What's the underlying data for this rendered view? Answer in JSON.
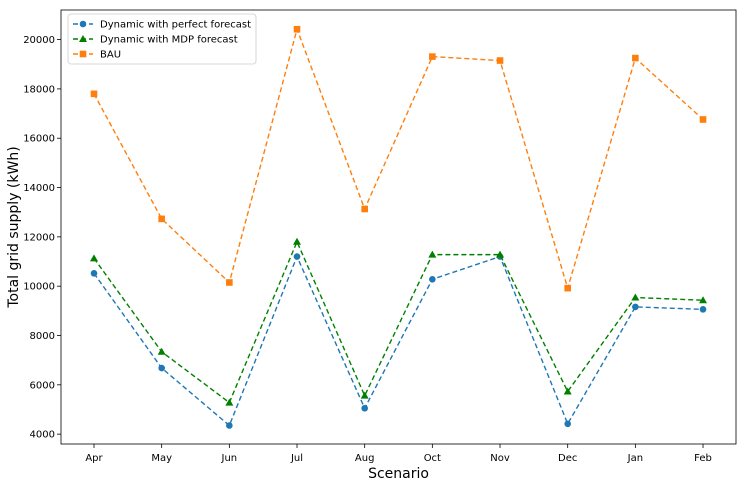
{
  "chart_data": {
    "type": "line",
    "title": "",
    "xlabel": "Scenario",
    "ylabel": "Total grid supply (kWh)",
    "categories": [
      "Apr",
      "May",
      "Jun",
      "Jul",
      "Aug",
      "Oct",
      "Nov",
      "Dec",
      "Jan",
      "Feb"
    ],
    "ylim": [
      3600,
      21200
    ],
    "yticks": [
      4000,
      6000,
      8000,
      10000,
      12000,
      14000,
      16000,
      18000,
      20000
    ],
    "grid": false,
    "legend_position": "top-left",
    "series": [
      {
        "name": "Dynamic with perfect forecast",
        "color": "#1f77b4",
        "marker": "circle",
        "linestyle": "dashed",
        "values": [
          10520,
          6680,
          4350,
          11200,
          5050,
          10280,
          11200,
          4420,
          9160,
          9060
        ]
      },
      {
        "name": "Dynamic with MDP forecast",
        "color": "#008000",
        "marker": "triangle",
        "linestyle": "dashed",
        "values": [
          11130,
          7340,
          5280,
          11800,
          5560,
          11280,
          11280,
          5730,
          9540,
          9430
        ]
      },
      {
        "name": "BAU",
        "color": "#ff7f0e",
        "marker": "square",
        "linestyle": "dashed",
        "values": [
          17800,
          12730,
          10150,
          20420,
          13130,
          19310,
          19150,
          9920,
          19250,
          16760
        ]
      }
    ]
  }
}
